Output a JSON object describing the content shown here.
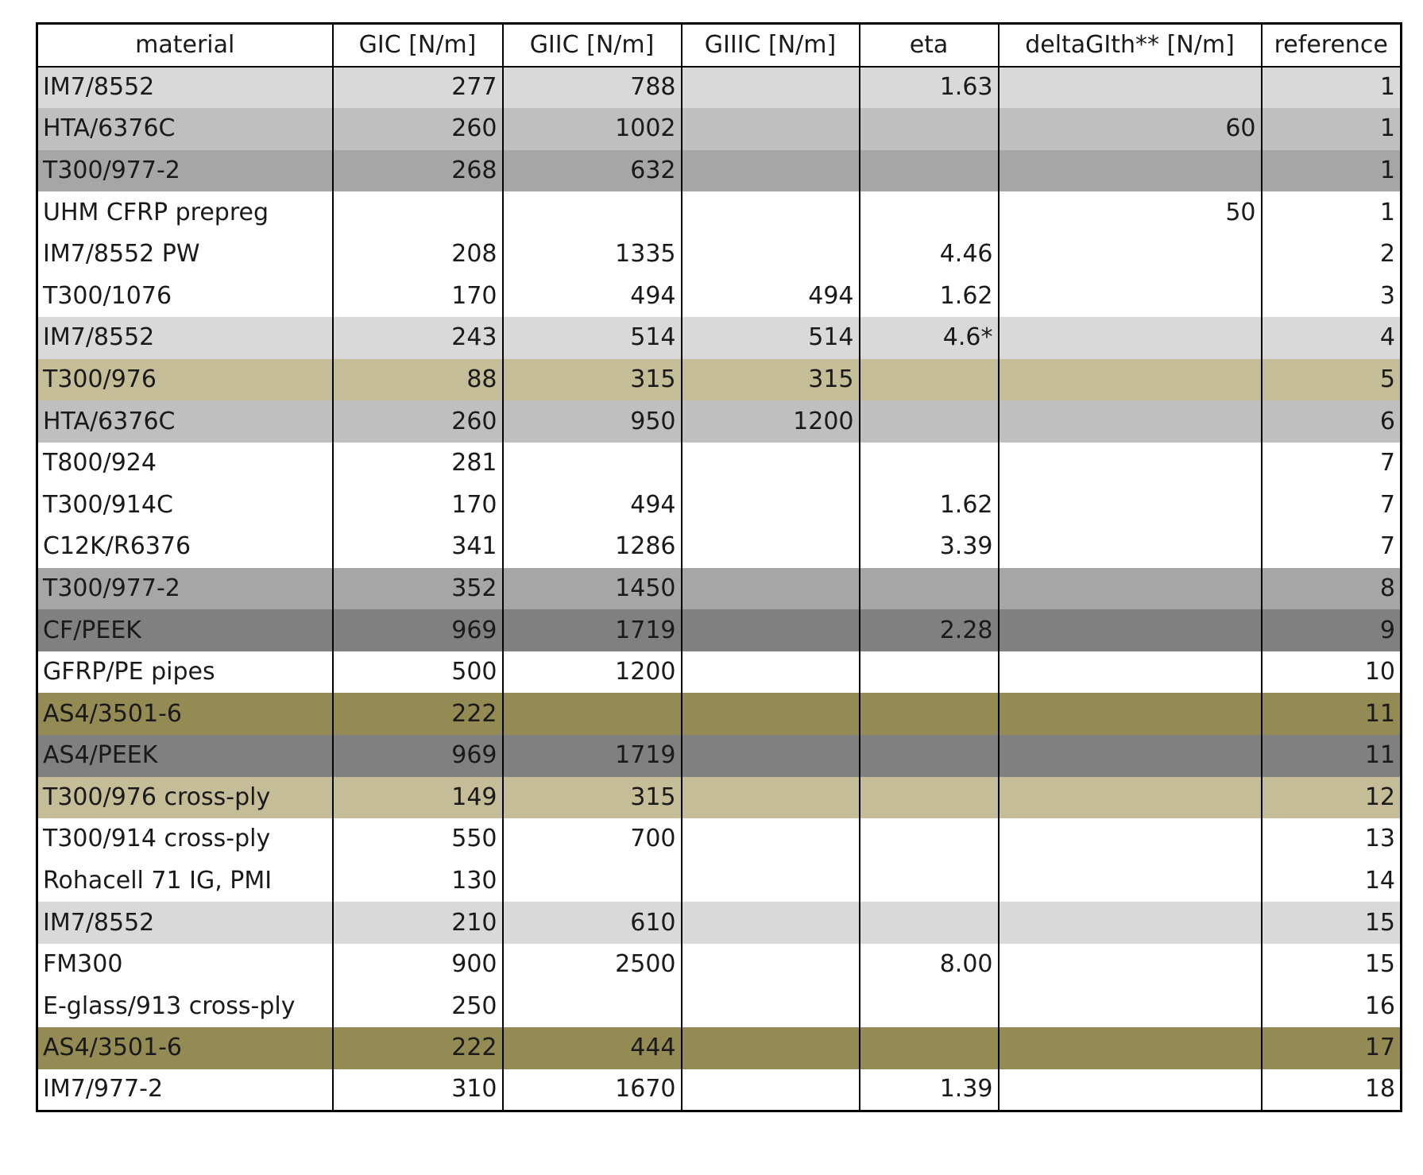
{
  "table": {
    "headers": {
      "material": "material",
      "gic": "GIC [N/m]",
      "giic": "GIIC [N/m]",
      "giiic": "GIIIC [N/m]",
      "eta": "eta",
      "delta_g_th": "deltaGIth** [N/m]",
      "reference": "reference"
    },
    "row_colors": {
      "white": "#ffffff",
      "light": "#d9d9d9",
      "mid": "#bfbfbf",
      "dark": "#a6a6a6",
      "darker": "#808080",
      "tan": "#c4bd97",
      "olive": "#948a54"
    },
    "rows": [
      {
        "shade": "light",
        "material": "IM7/8552",
        "gic": "277",
        "giic": "788",
        "giiic": "",
        "eta": "1.63",
        "delta_g_th": "",
        "reference": "1"
      },
      {
        "shade": "mid",
        "material": "HTA/6376C",
        "gic": "260",
        "giic": "1002",
        "giiic": "",
        "eta": "",
        "delta_g_th": "60",
        "reference": "1"
      },
      {
        "shade": "dark",
        "material": "T300/977-2",
        "gic": "268",
        "giic": "632",
        "giiic": "",
        "eta": "",
        "delta_g_th": "",
        "reference": "1"
      },
      {
        "shade": "white",
        "material": "UHM CFRP prepreg",
        "gic": "",
        "giic": "",
        "giiic": "",
        "eta": "",
        "delta_g_th": "50",
        "reference": "1"
      },
      {
        "shade": "white",
        "material": "IM7/8552 PW",
        "gic": "208",
        "giic": "1335",
        "giiic": "",
        "eta": "4.46",
        "delta_g_th": "",
        "reference": "2"
      },
      {
        "shade": "white",
        "material": "T300/1076",
        "gic": "170",
        "giic": "494",
        "giiic": "494",
        "eta": "1.62",
        "delta_g_th": "",
        "reference": "3"
      },
      {
        "shade": "light",
        "material": "IM7/8552",
        "gic": "243",
        "giic": "514",
        "giiic": "514",
        "eta": "4.6*",
        "delta_g_th": "",
        "reference": "4"
      },
      {
        "shade": "tan",
        "material": "T300/976",
        "gic": "88",
        "giic": "315",
        "giiic": "315",
        "eta": "",
        "delta_g_th": "",
        "reference": "5"
      },
      {
        "shade": "mid",
        "material": "HTA/6376C",
        "gic": "260",
        "giic": "950",
        "giiic": "1200",
        "eta": "",
        "delta_g_th": "",
        "reference": "6"
      },
      {
        "shade": "white",
        "material": "T800/924",
        "gic": "281",
        "giic": "",
        "giiic": "",
        "eta": "",
        "delta_g_th": "",
        "reference": "7"
      },
      {
        "shade": "white",
        "material": "T300/914C",
        "gic": "170",
        "giic": "494",
        "giiic": "",
        "eta": "1.62",
        "delta_g_th": "",
        "reference": "7"
      },
      {
        "shade": "white",
        "material": "C12K/R6376",
        "gic": "341",
        "giic": "1286",
        "giiic": "",
        "eta": "3.39",
        "delta_g_th": "",
        "reference": "7"
      },
      {
        "shade": "dark",
        "material": "T300/977-2",
        "gic": "352",
        "giic": "1450",
        "giiic": "",
        "eta": "",
        "delta_g_th": "",
        "reference": "8"
      },
      {
        "shade": "darker",
        "material": "CF/PEEK",
        "gic": "969",
        "giic": "1719",
        "giiic": "",
        "eta": "2.28",
        "delta_g_th": "",
        "reference": "9"
      },
      {
        "shade": "white",
        "material": "GFRP/PE pipes",
        "gic": "500",
        "giic": "1200",
        "giiic": "",
        "eta": "",
        "delta_g_th": "",
        "reference": "10"
      },
      {
        "shade": "olive",
        "material": "AS4/3501-6",
        "gic": "222",
        "giic": "",
        "giiic": "",
        "eta": "",
        "delta_g_th": "",
        "reference": "11"
      },
      {
        "shade": "darker",
        "material": "AS4/PEEK",
        "gic": "969",
        "giic": "1719",
        "giiic": "",
        "eta": "",
        "delta_g_th": "",
        "reference": "11"
      },
      {
        "shade": "tan",
        "material": "T300/976 cross-ply",
        "gic": "149",
        "giic": "315",
        "giiic": "",
        "eta": "",
        "delta_g_th": "",
        "reference": "12"
      },
      {
        "shade": "white",
        "material": "T300/914 cross-ply",
        "gic": "550",
        "giic": "700",
        "giiic": "",
        "eta": "",
        "delta_g_th": "",
        "reference": "13"
      },
      {
        "shade": "white",
        "material": "Rohacell 71 IG, PMI",
        "gic": "130",
        "giic": "",
        "giiic": "",
        "eta": "",
        "delta_g_th": "",
        "reference": "14"
      },
      {
        "shade": "light",
        "material": "IM7/8552",
        "gic": "210",
        "giic": "610",
        "giiic": "",
        "eta": "",
        "delta_g_th": "",
        "reference": "15"
      },
      {
        "shade": "white",
        "material": "FM300",
        "gic": "900",
        "giic": "2500",
        "giiic": "",
        "eta": "8.00",
        "delta_g_th": "",
        "reference": "15"
      },
      {
        "shade": "white",
        "material": "E-glass/913 cross-ply",
        "gic": "250",
        "giic": "",
        "giiic": "",
        "eta": "",
        "delta_g_th": "",
        "reference": "16"
      },
      {
        "shade": "olive",
        "material": "AS4/3501-6",
        "gic": "222",
        "giic": "444",
        "giiic": "",
        "eta": "",
        "delta_g_th": "",
        "reference": "17"
      },
      {
        "shade": "white",
        "material": "IM7/977-2",
        "gic": "310",
        "giic": "1670",
        "giiic": "",
        "eta": "1.39",
        "delta_g_th": "",
        "reference": "18"
      }
    ]
  }
}
